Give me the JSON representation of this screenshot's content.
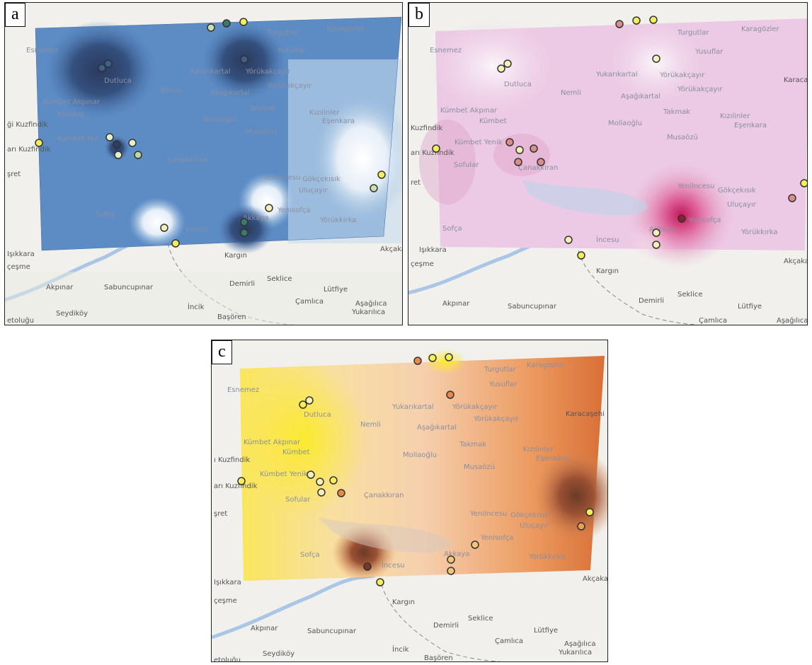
{
  "panels": [
    {
      "id": "a",
      "letter": "a",
      "ramp": "blue"
    },
    {
      "id": "b",
      "letter": "b",
      "ramp": "pink"
    },
    {
      "id": "c",
      "letter": "c",
      "ramp": "orange"
    }
  ],
  "place_labels_outside": [
    "Kargın",
    "Seklice",
    "Demirli",
    "Lütfiye",
    "Çamlıca",
    "Aşağılıca",
    "Yukarılıca",
    "Akpınar",
    "Sabuncupınar",
    "İncik",
    "Başören",
    "Seydiköy",
    "Işıkkara",
    "Akçakaya",
    "çeşme",
    "etoluğu",
    "Esnemez",
    "ği Kuzfindik",
    "arı Kuzfindik",
    "şret"
  ],
  "place_labels_inside": [
    "Turgutlar",
    "Karagözler",
    "Yusuflar",
    "Dutluca",
    "Nemli",
    "Yukarıkartal",
    "Yörükakçayır",
    "Aşağıkartal",
    "Takmak",
    "Kızılinler",
    "Eşenkara",
    "Kümbet Akpınar",
    "Kümbet",
    "Mollaoğlu",
    "Musaözü",
    "Kümbet Yenik",
    "Sofular",
    "Çanakkıran",
    "Yenilncesu",
    "Gökçekısık",
    "Uluçayır",
    "Yenisofça",
    "Karaali",
    "Güvele",
    "Sofça",
    "İncesu",
    "Akkaya",
    "Yörükkırka",
    "Karacaşehir"
  ]
}
